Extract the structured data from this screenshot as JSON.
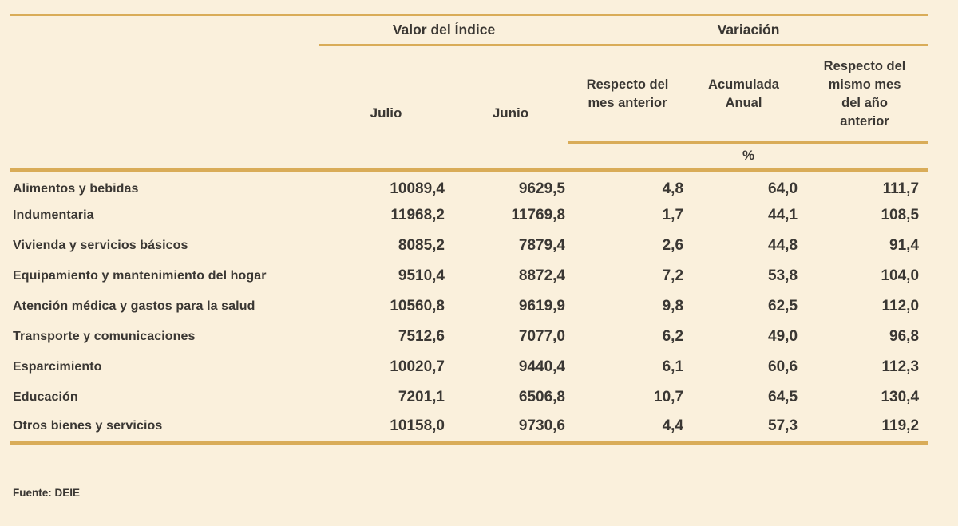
{
  "colors": {
    "bg": "#faf0dc",
    "rule_gold": "#d9ac58",
    "ink": "#3a3733"
  },
  "chart_data": {
    "type": "table",
    "group_headers": {
      "index_value": "Valor del Índice",
      "variation": "Variación"
    },
    "columns": {
      "julio": "Julio",
      "junio": "Junio",
      "var_prev": "Respecto del\nmes anterior",
      "var_accum": "Acumulada\nAnual",
      "var_yoy": "Respecto del\nmismo mes\ndel año\nanterior"
    },
    "unit_label": "%",
    "rows": [
      {
        "label": "Alimentos y bebidas",
        "julio": "10089,4",
        "junio": "9629,5",
        "var_prev": "4,8",
        "var_accum": "64,0",
        "var_yoy": "111,7"
      },
      {
        "label": "Indumentaria",
        "julio": "11968,2",
        "junio": "11769,8",
        "var_prev": "1,7",
        "var_accum": "44,1",
        "var_yoy": "108,5"
      },
      {
        "label": "Vivienda y servicios básicos",
        "julio": "8085,2",
        "junio": "7879,4",
        "var_prev": "2,6",
        "var_accum": "44,8",
        "var_yoy": "91,4"
      },
      {
        "label": "Equipamiento y mantenimiento del hogar",
        "julio": "9510,4",
        "junio": "8872,4",
        "var_prev": "7,2",
        "var_accum": "53,8",
        "var_yoy": "104,0"
      },
      {
        "label": "Atención médica y gastos para la salud",
        "julio": "10560,8",
        "junio": "9619,9",
        "var_prev": "9,8",
        "var_accum": "62,5",
        "var_yoy": "112,0"
      },
      {
        "label": "Transporte y comunicaciones",
        "julio": "7512,6",
        "junio": "7077,0",
        "var_prev": "6,2",
        "var_accum": "49,0",
        "var_yoy": "96,8"
      },
      {
        "label": "Esparcimiento",
        "julio": "10020,7",
        "junio": "9440,4",
        "var_prev": "6,1",
        "var_accum": "60,6",
        "var_yoy": "112,3"
      },
      {
        "label": "Educación",
        "julio": "7201,1",
        "junio": "6506,8",
        "var_prev": "10,7",
        "var_accum": "64,5",
        "var_yoy": "130,4"
      },
      {
        "label": "Otros bienes y servicios",
        "julio": "10158,0",
        "junio": "9730,6",
        "var_prev": "4,4",
        "var_accum": "57,3",
        "var_yoy": "119,2"
      }
    ],
    "source_note": "Fuente: DEIE"
  }
}
